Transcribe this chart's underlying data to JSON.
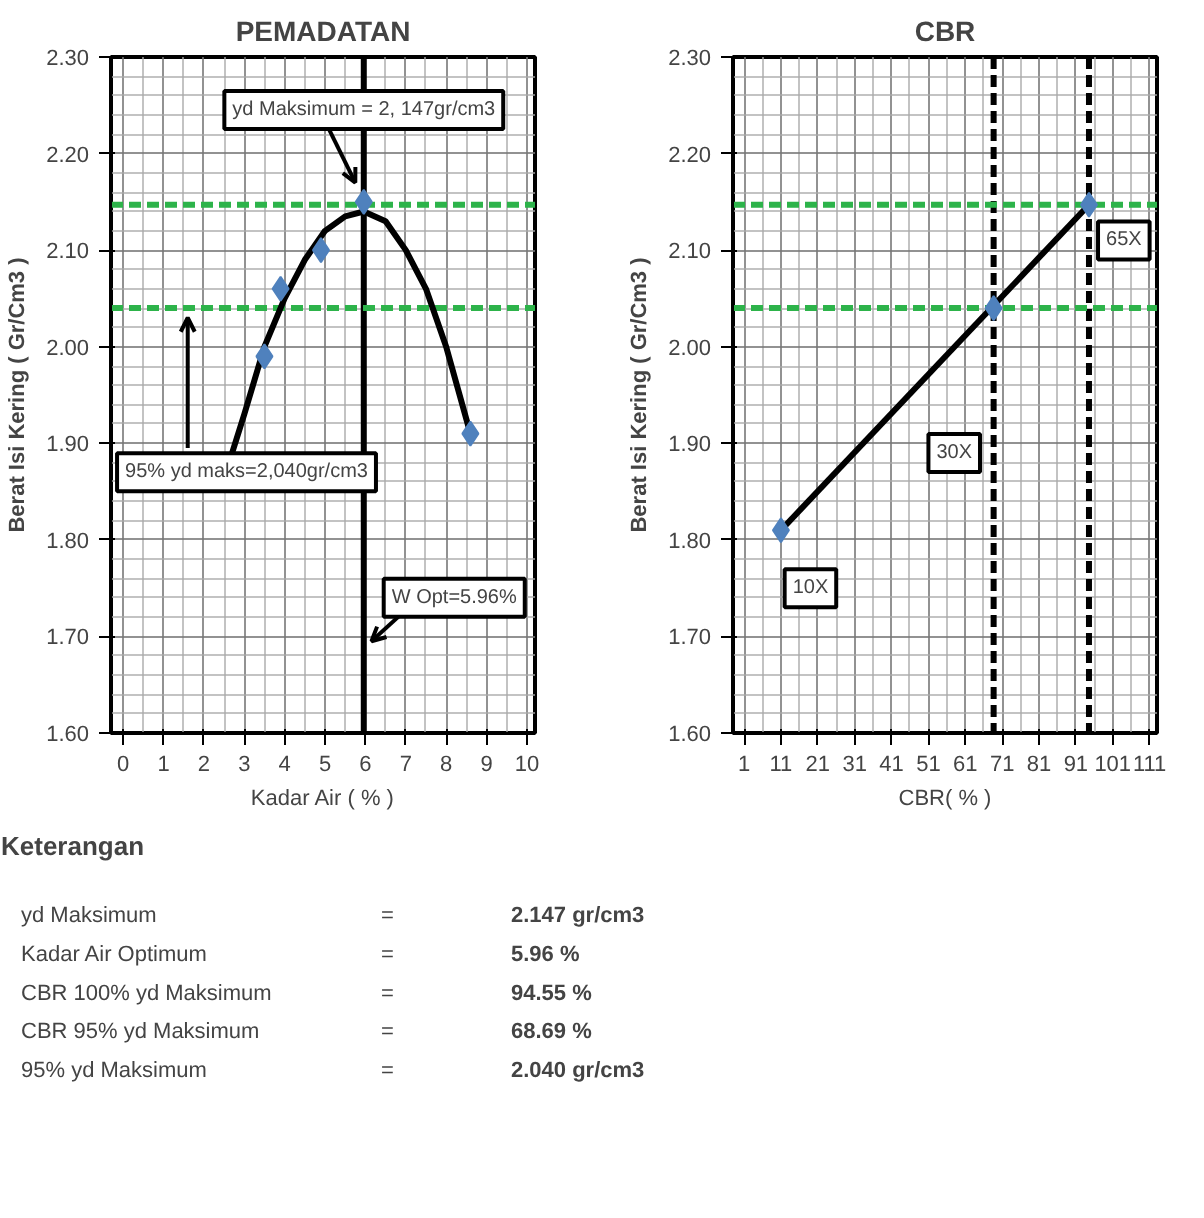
{
  "chart_data": [
    {
      "type": "scatter",
      "title": "PEMADATAN",
      "xlabel": "Kadar Air ( % )",
      "ylabel": "Berat Isi Kering ( Gr/Cm3 )",
      "xlim": [
        -0.3,
        10.2
      ],
      "ylim": [
        1.6,
        2.3
      ],
      "xticks": [
        0,
        1,
        2,
        3,
        4,
        5,
        6,
        7,
        8,
        9,
        10
      ],
      "yticks": [
        {
          "value": 1.6,
          "label": "1.60"
        },
        {
          "value": 1.7,
          "label": "1.70"
        },
        {
          "value": 1.8,
          "label": "1.80"
        },
        {
          "value": 1.9,
          "label": "1.90"
        },
        {
          "value": 2.0,
          "label": "2.00"
        },
        {
          "value": 2.1,
          "label": "2.10"
        },
        {
          "value": 2.2,
          "label": "2.20"
        },
        {
          "value": 2.3,
          "label": "2.30"
        }
      ],
      "grid": true,
      "series": [
        {
          "type": "line",
          "color": "#000000",
          "marker": "none",
          "x": [
            2.7,
            3,
            3.5,
            4,
            4.5,
            5,
            5.5,
            5.96,
            6.5,
            7,
            7.5,
            8,
            8.6
          ],
          "values": [
            1.89,
            1.93,
            2.0,
            2.05,
            2.09,
            2.12,
            2.135,
            2.14,
            2.13,
            2.1,
            2.06,
            2.0,
            1.91
          ]
        },
        {
          "type": "scatter",
          "color": "#4f81bd",
          "marker": "diamond",
          "x": [
            3.5,
            3.9,
            4.9,
            5.96,
            8.6
          ],
          "values": [
            1.99,
            2.06,
            2.1,
            2.15,
            1.91
          ]
        }
      ],
      "ref_lines": [
        {
          "axis": "x",
          "value": 5.96,
          "color": "#000000",
          "line_style": "solid"
        },
        {
          "axis": "y",
          "value": 2.147,
          "color": "#2db34a",
          "line_style": "dashed"
        },
        {
          "axis": "y",
          "value": 2.04,
          "color": "#2db34a",
          "line_style": "dashed"
        }
      ],
      "annotations": [
        {
          "text": "yd Maksimum = 2, 147gr/cm3",
          "x": 5.75,
          "y": 2.17
        },
        {
          "text": "95% yd maks=2,040gr/cm3",
          "x": 1.6,
          "y": 2.03
        },
        {
          "text": "W Opt=5.96%",
          "x": 6.15,
          "y": 1.695
        }
      ]
    },
    {
      "type": "scatter",
      "title": "CBR",
      "xlabel": "CBR( % )",
      "ylabel": "Berat Isi Kering ( Gr/Cm3 )",
      "xlim": [
        -2,
        113
      ],
      "ylim": [
        1.6,
        2.3
      ],
      "xticks": [
        1,
        11,
        21,
        31,
        41,
        51,
        61,
        71,
        81,
        91,
        101,
        111
      ],
      "yticks": [
        {
          "value": 1.6,
          "label": "1.60"
        },
        {
          "value": 1.7,
          "label": "1.70"
        },
        {
          "value": 1.8,
          "label": "1.80"
        },
        {
          "value": 1.9,
          "label": "1.90"
        },
        {
          "value": 2.0,
          "label": "2.00"
        },
        {
          "value": 2.1,
          "label": "2.10"
        },
        {
          "value": 2.2,
          "label": "2.20"
        },
        {
          "value": 2.3,
          "label": "2.30"
        }
      ],
      "grid": true,
      "series": [
        {
          "type": "line",
          "color": "#000000",
          "marker": "none",
          "x": [
            11,
            94.55
          ],
          "values": [
            1.81,
            2.147
          ]
        },
        {
          "type": "scatter",
          "color": "#4f81bd",
          "marker": "diamond",
          "x": [
            11,
            68.69,
            94.55
          ],
          "values": [
            1.81,
            2.04,
            2.147
          ]
        }
      ],
      "ref_lines": [
        {
          "axis": "x",
          "value": 68.69,
          "color": "#000000",
          "line_style": "dashed"
        },
        {
          "axis": "x",
          "value": 94.55,
          "color": "#000000",
          "line_style": "dashed"
        },
        {
          "axis": "y",
          "value": 2.147,
          "color": "#2db34a",
          "line_style": "dashed"
        },
        {
          "axis": "y",
          "value": 2.04,
          "color": "#2db34a",
          "line_style": "dashed"
        }
      ],
      "annotations": [
        "10X",
        "30X",
        "65X"
      ]
    },
    {
      "type": "other",
      "title": "Keterangan",
      "annotations": [
        "yd Maksimum",
        "=",
        "2.147 gr/cm3",
        "Kadar Air Optimum",
        "=",
        "5.96 %",
        "CBR 100% yd Maksimum",
        "=",
        "94.55 %",
        "CBR 95% yd Maksimum",
        "=",
        "68.69 %",
        "95% yd Maksimum",
        "=",
        "2.040 gr/cm3"
      ]
    }
  ]
}
